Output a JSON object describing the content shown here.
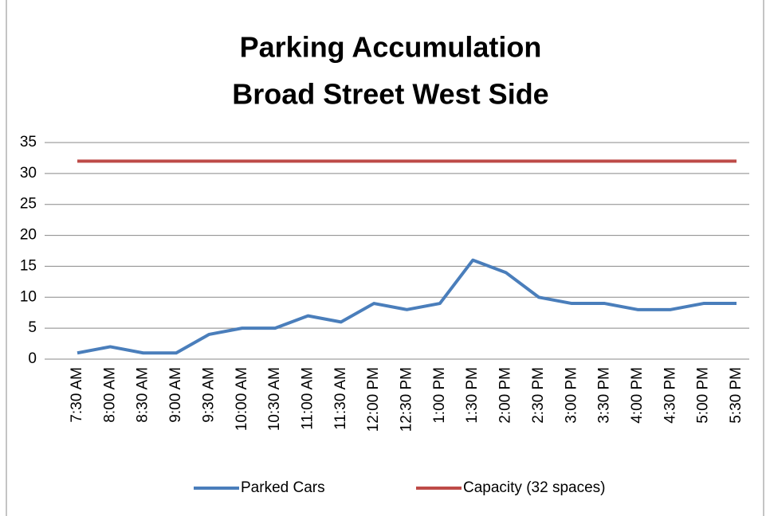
{
  "chart_data": {
    "type": "line",
    "title": [
      "Parking Accumulation",
      "Broad Street West Side"
    ],
    "categories": [
      "7:30 AM",
      "8:00 AM",
      "8:30 AM",
      "9:00 AM",
      "9:30 AM",
      "10:00 AM",
      "10:30 AM",
      "11:00 AM",
      "11:30 AM",
      "12:00 PM",
      "12:30 PM",
      "1:00 PM",
      "1:30 PM",
      "2:00 PM",
      "2:30 PM",
      "3:00 PM",
      "3:30 PM",
      "4:00 PM",
      "4:30 PM",
      "5:00 PM",
      "5:30 PM"
    ],
    "series": [
      {
        "name": "Parked Cars",
        "color": "#4a7ebb",
        "values": [
          1,
          2,
          1,
          1,
          4,
          5,
          5,
          7,
          6,
          9,
          8,
          9,
          16,
          14,
          10,
          9,
          9,
          8,
          8,
          9,
          9
        ]
      },
      {
        "name": "Capacity (32 spaces)",
        "color": "#be4b48",
        "values": [
          32,
          32,
          32,
          32,
          32,
          32,
          32,
          32,
          32,
          32,
          32,
          32,
          32,
          32,
          32,
          32,
          32,
          32,
          32,
          32,
          32
        ]
      }
    ],
    "ylim": [
      0,
      35
    ],
    "yticks": [
      0,
      5,
      10,
      15,
      20,
      25,
      30,
      35
    ],
    "grid": true,
    "legend": "bottom"
  }
}
